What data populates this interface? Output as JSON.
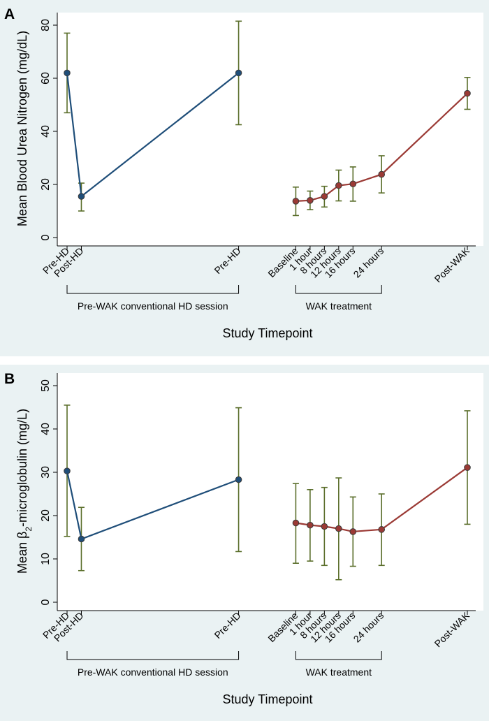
{
  "chart_data": [
    {
      "type": "line",
      "panel_label": "A",
      "ylabel": "Mean Blood Urea Nitrogen (mg/dL)",
      "xlabel": "Study Timepoint",
      "ylim": [
        0,
        80
      ],
      "yticks": [
        0,
        20,
        40,
        60,
        80
      ],
      "categories": [
        "Pre-HD",
        "Post-HD",
        "Pre-HD",
        "Baseline",
        "1 hour",
        "8 hours",
        "12 hours",
        "16 hours",
        "24 hours",
        "Post-WAK"
      ],
      "category_positions": [
        0,
        1,
        12,
        16,
        17,
        18,
        19,
        20,
        22,
        28
      ],
      "groups": [
        {
          "label": "Pre-WAK conventional HD session",
          "from": 0,
          "to": 12
        },
        {
          "label": "WAK treatment",
          "from": 16,
          "to": 22
        }
      ],
      "series": [
        {
          "color": "#1f4e79",
          "points": [
            {
              "x": 0,
              "y": 62.0,
              "lo": 47.0,
              "hi": 77.0
            },
            {
              "x": 1,
              "y": 15.5,
              "lo": 10.0,
              "hi": 20.5
            },
            {
              "x": 12,
              "y": 62.0,
              "lo": 42.5,
              "hi": 81.5
            }
          ]
        },
        {
          "color": "#9b3a35",
          "points": [
            {
              "x": 16,
              "y": 13.7,
              "lo": 8.3,
              "hi": 19.0
            },
            {
              "x": 17,
              "y": 14.0,
              "lo": 10.5,
              "hi": 17.5
            },
            {
              "x": 18,
              "y": 15.5,
              "lo": 11.5,
              "hi": 19.3
            },
            {
              "x": 19,
              "y": 19.6,
              "lo": 13.8,
              "hi": 25.4
            },
            {
              "x": 20,
              "y": 20.2,
              "lo": 13.7,
              "hi": 26.6
            },
            {
              "x": 22,
              "y": 23.8,
              "lo": 16.8,
              "hi": 30.8
            },
            {
              "x": 28,
              "y": 54.3,
              "lo": 48.3,
              "hi": 60.3
            }
          ]
        }
      ]
    },
    {
      "type": "line",
      "panel_label": "B",
      "ylabel_parts": [
        "Mean β",
        "2",
        "-microglobulin (mg/L)"
      ],
      "xlabel": "Study Timepoint",
      "ylim": [
        0,
        50
      ],
      "yticks": [
        0,
        10,
        20,
        30,
        40,
        50
      ],
      "categories": [
        "Pre-HD",
        "Post-HD",
        "Pre-HD",
        "Baseline",
        "1 hour",
        "8 hours",
        "12 hours",
        "16 hours",
        "24 hours",
        "Post-WAK"
      ],
      "category_positions": [
        0,
        1,
        12,
        16,
        17,
        18,
        19,
        20,
        22,
        28
      ],
      "groups": [
        {
          "label": "Pre-WAK conventional HD session",
          "from": 0,
          "to": 12
        },
        {
          "label": "WAK treatment",
          "from": 16,
          "to": 22
        }
      ],
      "series": [
        {
          "color": "#1f4e79",
          "points": [
            {
              "x": 0,
              "y": 30.3,
              "lo": 15.2,
              "hi": 45.5
            },
            {
              "x": 1,
              "y": 14.6,
              "lo": 7.3,
              "hi": 21.9
            },
            {
              "x": 12,
              "y": 28.3,
              "lo": 11.7,
              "hi": 44.9
            }
          ]
        },
        {
          "color": "#9b3a35",
          "points": [
            {
              "x": 16,
              "y": 18.3,
              "lo": 9.0,
              "hi": 27.4
            },
            {
              "x": 17,
              "y": 17.8,
              "lo": 9.5,
              "hi": 26.0
            },
            {
              "x": 18,
              "y": 17.5,
              "lo": 8.5,
              "hi": 26.5
            },
            {
              "x": 19,
              "y": 17.0,
              "lo": 5.2,
              "hi": 28.7
            },
            {
              "x": 20,
              "y": 16.3,
              "lo": 8.3,
              "hi": 24.3
            },
            {
              "x": 22,
              "y": 16.8,
              "lo": 8.5,
              "hi": 25.0
            },
            {
              "x": 28,
              "y": 31.1,
              "lo": 18.0,
              "hi": 44.2
            }
          ]
        }
      ]
    }
  ],
  "colors": {
    "panel_background": "#eaf2f3",
    "error_bar": "#5a6e2a",
    "marker_outline": "#3a3a3a"
  }
}
